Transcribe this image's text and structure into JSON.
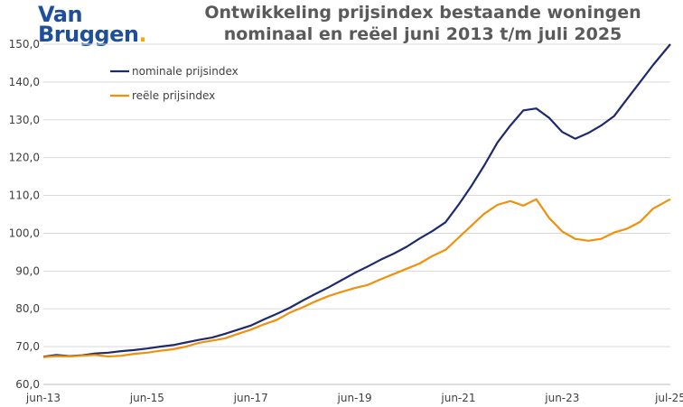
{
  "logo": {
    "line1": "Van",
    "line2": "Bruggen",
    "dot": "."
  },
  "colors": {
    "nominal": "#1f2a6e",
    "real": "#f0900c",
    "grid": "#d9d9d9",
    "axis": "#bfbfbf"
  },
  "chart_data": {
    "type": "line",
    "title": "Ontwikkeling prijsindex bestaande woningen",
    "subtitle": "nominaal en reëel juni 2013 t/m juli 2025",
    "xlabel": "",
    "ylabel": "",
    "ylim": [
      60,
      150
    ],
    "yticks": [
      "60,0",
      "70,0",
      "80,0",
      "90,0",
      "100,0",
      "110,0",
      "120,0",
      "130,0",
      "140,0",
      "150,0"
    ],
    "xticks": [
      "jun-13",
      "jun-15",
      "jun-17",
      "jun-19",
      "jun-21",
      "jun-23",
      "jul-25"
    ],
    "grid": "horizontal",
    "legend": "top-left",
    "series": [
      {
        "name": "nominale prijsindex",
        "points": [
          [
            "2013-06",
            67.3
          ],
          [
            "2013-09",
            67.8
          ],
          [
            "2013-12",
            67.5
          ],
          [
            "2014-03",
            67.7
          ],
          [
            "2014-06",
            68.2
          ],
          [
            "2014-09",
            68.4
          ],
          [
            "2014-12",
            68.8
          ],
          [
            "2015-03",
            69.1
          ],
          [
            "2015-06",
            69.5
          ],
          [
            "2015-09",
            70.0
          ],
          [
            "2015-12",
            70.4
          ],
          [
            "2016-03",
            71.1
          ],
          [
            "2016-06",
            71.8
          ],
          [
            "2016-09",
            72.4
          ],
          [
            "2016-12",
            73.4
          ],
          [
            "2017-03",
            74.5
          ],
          [
            "2017-06",
            75.6
          ],
          [
            "2017-09",
            77.2
          ],
          [
            "2017-12",
            78.7
          ],
          [
            "2018-03",
            80.3
          ],
          [
            "2018-06",
            82.2
          ],
          [
            "2018-09",
            84.0
          ],
          [
            "2018-12",
            85.7
          ],
          [
            "2019-03",
            87.6
          ],
          [
            "2019-06",
            89.5
          ],
          [
            "2019-09",
            91.2
          ],
          [
            "2019-12",
            93.0
          ],
          [
            "2020-03",
            94.6
          ],
          [
            "2020-06",
            96.4
          ],
          [
            "2020-09",
            98.6
          ],
          [
            "2020-12",
            100.6
          ],
          [
            "2021-03",
            102.9
          ],
          [
            "2021-06",
            107.5
          ],
          [
            "2021-09",
            112.5
          ],
          [
            "2021-12",
            118.0
          ],
          [
            "2022-03",
            124.0
          ],
          [
            "2022-06",
            128.5
          ],
          [
            "2022-09",
            132.5
          ],
          [
            "2022-12",
            133.0
          ],
          [
            "2023-03",
            130.5
          ],
          [
            "2023-06",
            126.8
          ],
          [
            "2023-09",
            125.0
          ],
          [
            "2023-12",
            126.5
          ],
          [
            "2024-03",
            128.5
          ],
          [
            "2024-06",
            131.0
          ],
          [
            "2024-09",
            135.5
          ],
          [
            "2024-12",
            140.0
          ],
          [
            "2025-03",
            144.5
          ],
          [
            "2025-07",
            150.0
          ]
        ]
      },
      {
        "name": "reële prijsindex",
        "points": [
          [
            "2013-06",
            67.2
          ],
          [
            "2013-09",
            67.5
          ],
          [
            "2013-12",
            67.4
          ],
          [
            "2014-03",
            67.6
          ],
          [
            "2014-06",
            67.8
          ],
          [
            "2014-09",
            67.4
          ],
          [
            "2014-12",
            67.6
          ],
          [
            "2015-03",
            68.1
          ],
          [
            "2015-06",
            68.4
          ],
          [
            "2015-09",
            68.9
          ],
          [
            "2015-12",
            69.3
          ],
          [
            "2016-03",
            70.0
          ],
          [
            "2016-06",
            71.0
          ],
          [
            "2016-09",
            71.6
          ],
          [
            "2016-12",
            72.2
          ],
          [
            "2017-03",
            73.4
          ],
          [
            "2017-06",
            74.5
          ],
          [
            "2017-09",
            75.9
          ],
          [
            "2017-12",
            77.1
          ],
          [
            "2018-03",
            79.0
          ],
          [
            "2018-06",
            80.4
          ],
          [
            "2018-09",
            82.0
          ],
          [
            "2018-12",
            83.4
          ],
          [
            "2019-03",
            84.5
          ],
          [
            "2019-06",
            85.5
          ],
          [
            "2019-09",
            86.3
          ],
          [
            "2019-12",
            87.8
          ],
          [
            "2020-03",
            89.2
          ],
          [
            "2020-06",
            90.6
          ],
          [
            "2020-09",
            92.0
          ],
          [
            "2020-12",
            94.0
          ],
          [
            "2021-03",
            95.6
          ],
          [
            "2021-06",
            98.8
          ],
          [
            "2021-09",
            102.0
          ],
          [
            "2021-12",
            105.2
          ],
          [
            "2022-03",
            107.5
          ],
          [
            "2022-06",
            108.5
          ],
          [
            "2022-09",
            107.3
          ],
          [
            "2022-12",
            109.0
          ],
          [
            "2023-03",
            104.0
          ],
          [
            "2023-06",
            100.5
          ],
          [
            "2023-09",
            98.5
          ],
          [
            "2023-12",
            98.0
          ],
          [
            "2024-03",
            98.5
          ],
          [
            "2024-06",
            100.2
          ],
          [
            "2024-09",
            101.2
          ],
          [
            "2024-12",
            103.0
          ],
          [
            "2025-03",
            106.5
          ],
          [
            "2025-07",
            109.0
          ]
        ]
      }
    ]
  }
}
